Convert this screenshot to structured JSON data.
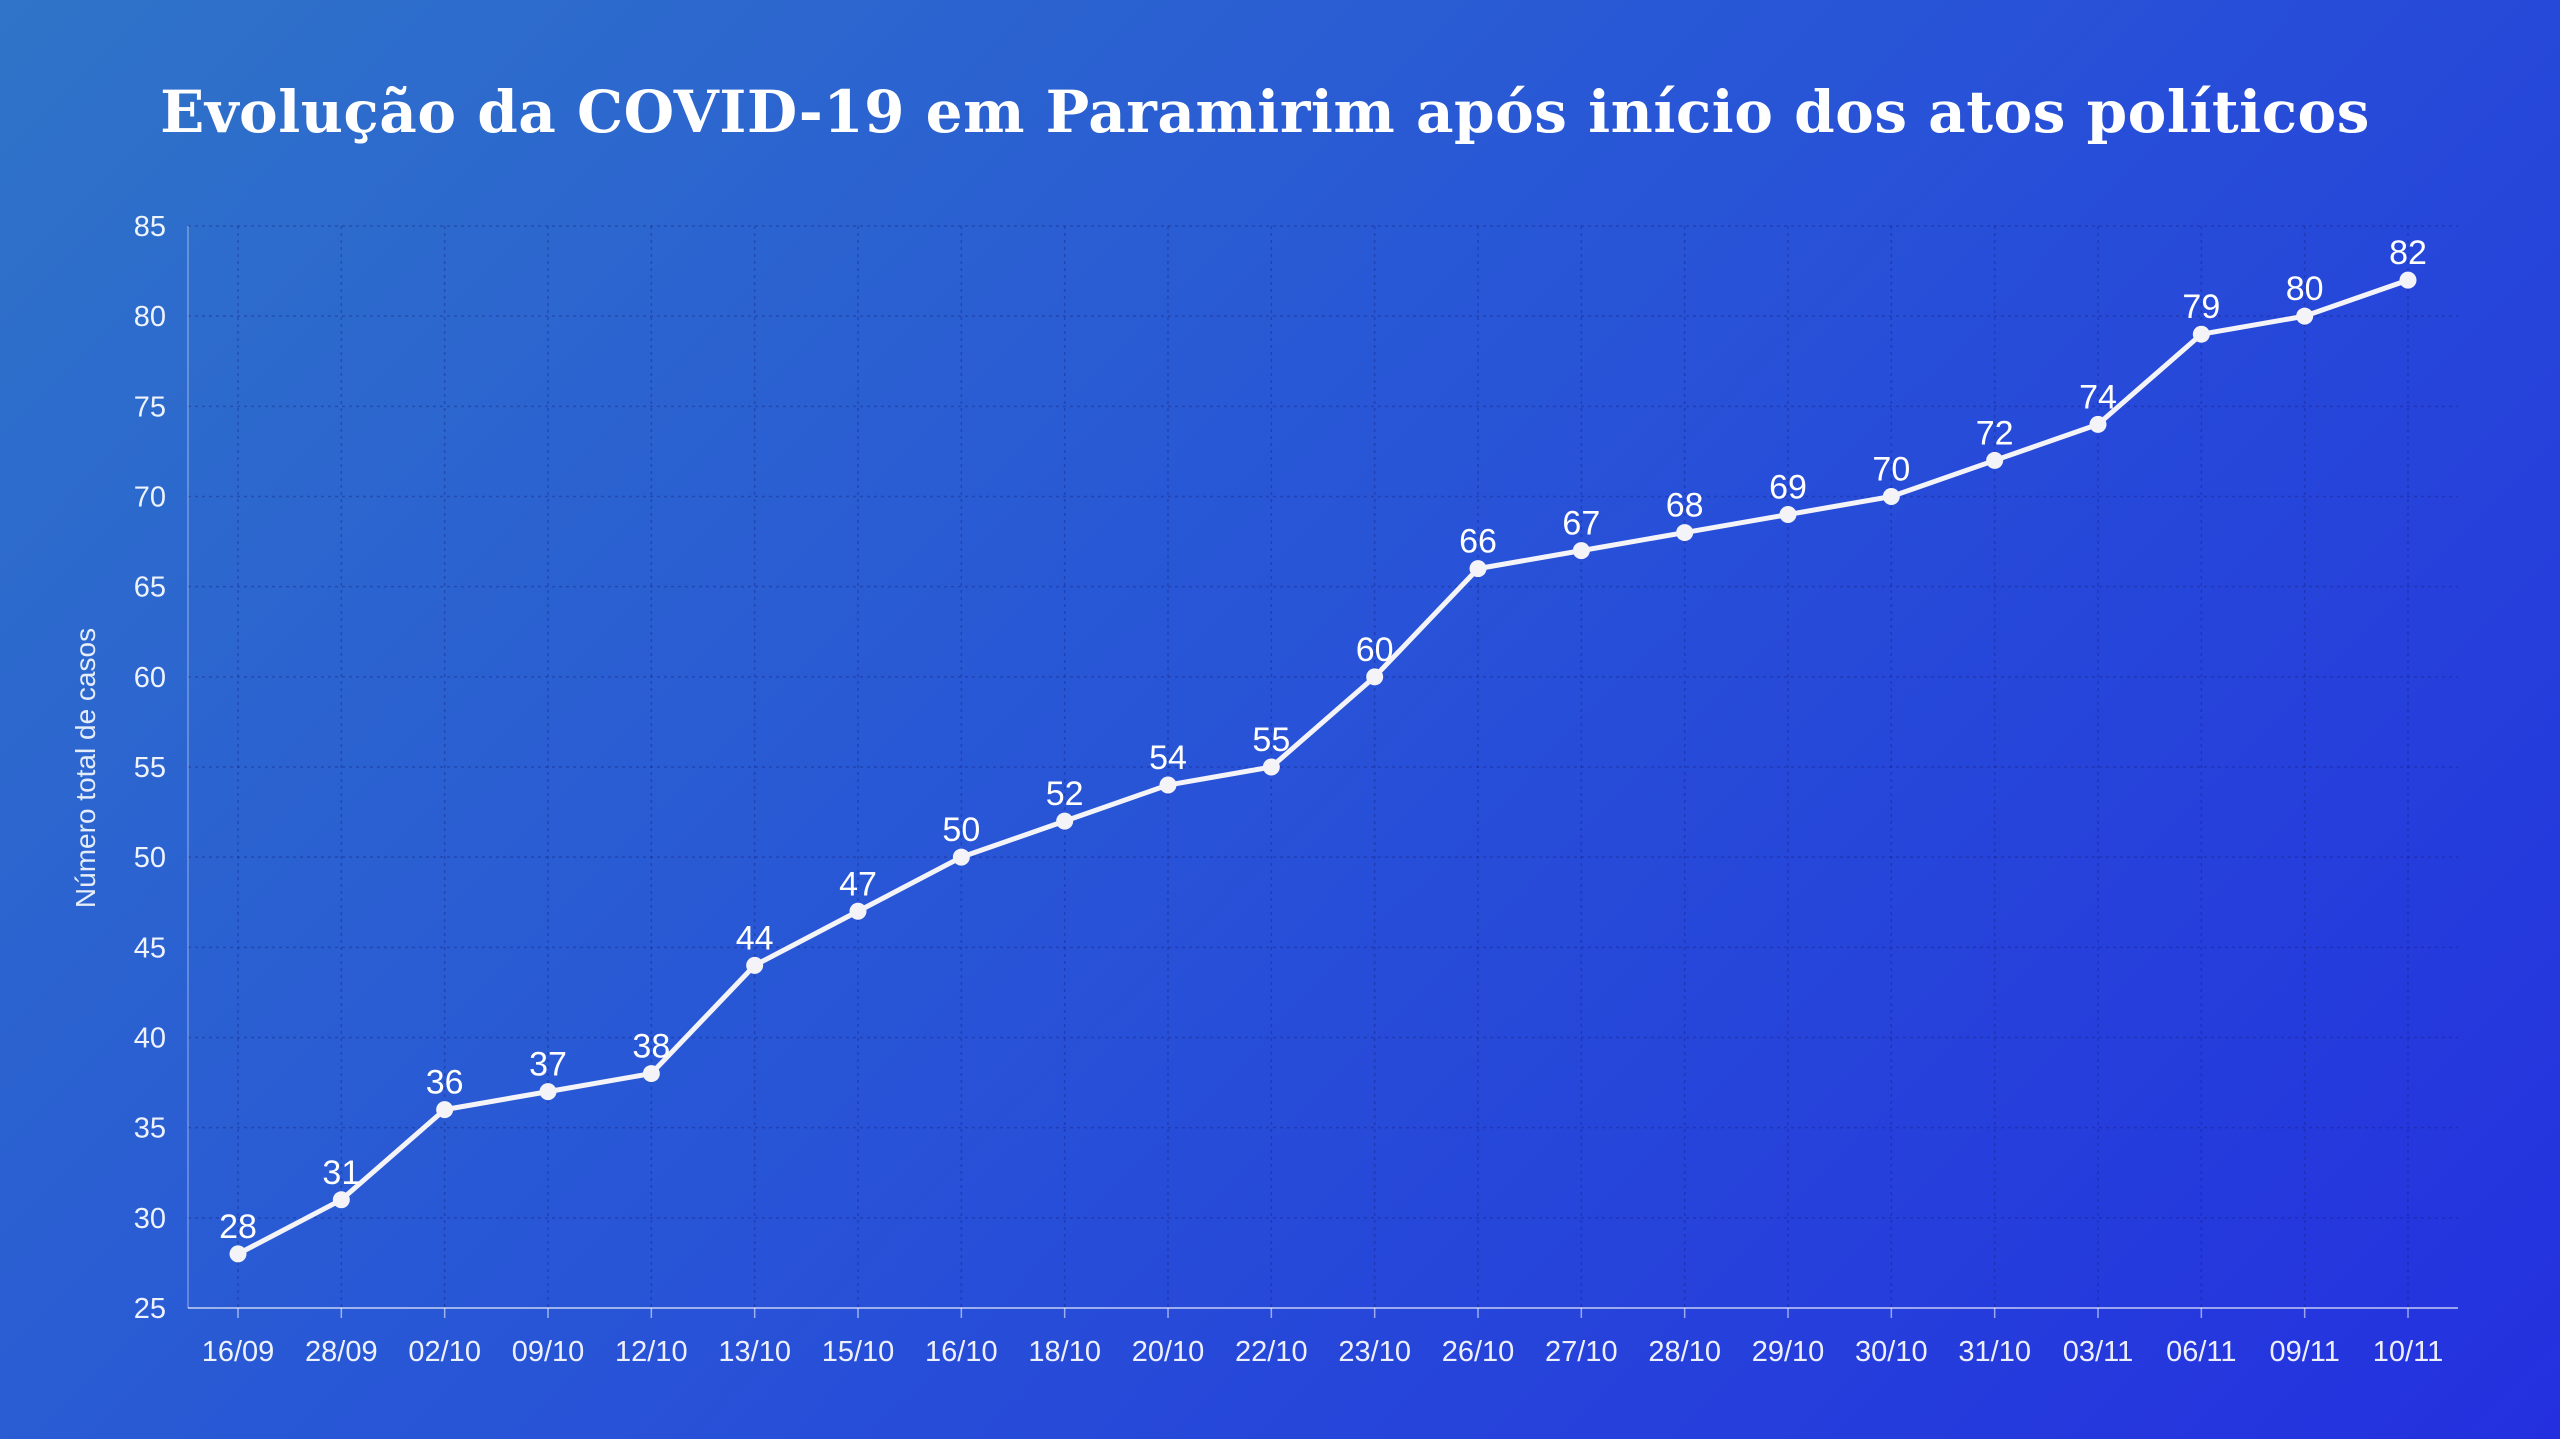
{
  "chart_data": {
    "type": "line",
    "title": "Evolução da COVID-19 em Paramirim após início dos atos políticos",
    "ylabel": "Número total de casos",
    "xlabel": "",
    "categories": [
      "16/09",
      "28/09",
      "02/10",
      "09/10",
      "12/10",
      "13/10",
      "15/10",
      "16/10",
      "18/10",
      "20/10",
      "22/10",
      "23/10",
      "26/10",
      "27/10",
      "28/10",
      "29/10",
      "30/10",
      "31/10",
      "03/11",
      "06/11",
      "09/11",
      "10/11"
    ],
    "values": [
      28,
      31,
      36,
      37,
      38,
      44,
      47,
      50,
      52,
      54,
      55,
      60,
      66,
      67,
      68,
      69,
      70,
      72,
      74,
      79,
      80,
      82
    ],
    "ylim": [
      25,
      85
    ],
    "yticks": [
      25,
      30,
      35,
      40,
      45,
      50,
      55,
      60,
      65,
      70,
      75,
      80,
      85
    ],
    "grid": true,
    "legend": "none",
    "colors": {
      "line": "#f4f4f8",
      "background_start": "#2f74c8",
      "background_end": "#2430df"
    }
  }
}
